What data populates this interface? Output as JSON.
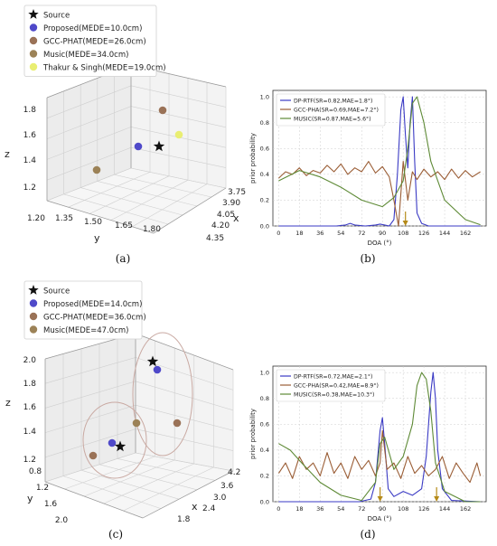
{
  "panels": [
    {
      "caption": "(a)",
      "legend": [
        {
          "label": "Source",
          "marker": "star",
          "color": "#111111"
        },
        {
          "label": "Proposed(MEDE=10.0cm)",
          "marker": "circle",
          "color": "#4f49c9"
        },
        {
          "label": "GCC-PHAT(MEDE=26.0cm)",
          "marker": "circle",
          "color": "#9a7257"
        },
        {
          "label": "Music(MEDE=34.0cm)",
          "marker": "circle",
          "color": "#9c8257"
        },
        {
          "label": "Thakur & Singh(MEDE=19.0cm)",
          "marker": "circle",
          "color": "#e9ee72"
        }
      ],
      "axes": {
        "z_label": "z",
        "y_label": "y",
        "x_label": "x",
        "z_ticks": [
          "1.8",
          "1.6",
          "1.4",
          "1.2"
        ],
        "y_ticks": [
          "1.20",
          "1.35",
          "1.50",
          "1.65",
          "1.80"
        ],
        "x_ticks": [
          "3.75",
          "3.90",
          "4.05",
          "4.20",
          "4.35"
        ]
      }
    },
    {
      "caption": "(b)",
      "xlabel": "DOA (°)",
      "ylabel": "prior probability",
      "x_ticks": [
        "0",
        "18",
        "36",
        "54",
        "72",
        "90",
        "108",
        "126",
        "144",
        "162"
      ],
      "y_ticks": [
        "0.0",
        "0.2",
        "0.4",
        "0.6",
        "0.8",
        "1.0"
      ],
      "legend": [
        {
          "label": "DP-RTF(SR=0.82,MAE=1.8°)",
          "color": "#3a3ac4"
        },
        {
          "label": "GCC-PHA(SR=0.69,MAE=7.2°)",
          "color": "#9a5d35"
        },
        {
          "label": "MUSIC(SR=0.87,MAE=5.6°)",
          "color": "#5e8a36"
        }
      ]
    },
    {
      "caption": "(c)",
      "legend": [
        {
          "label": "Source",
          "marker": "star",
          "color": "#111111"
        },
        {
          "label": "Proposed(MEDE=14.0cm)",
          "marker": "circle",
          "color": "#4f49c9"
        },
        {
          "label": "GCC-PHAT(MEDE=36.0cm)",
          "marker": "circle",
          "color": "#9a7257"
        },
        {
          "label": "Music(MEDE=47.0cm)",
          "marker": "circle",
          "color": "#9c8257"
        }
      ],
      "axes": {
        "z_label": "z",
        "y_label": "y",
        "x_label": "x",
        "z_ticks": [
          "2.0",
          "1.8",
          "1.6",
          "1.4",
          "1.2"
        ],
        "y_ticks": [
          "0.8",
          "1.2",
          "1.6",
          "2.0"
        ],
        "x_ticks": [
          "4.2",
          "3.6",
          "3.0",
          "2.4",
          "1.8"
        ]
      }
    },
    {
      "caption": "(d)",
      "xlabel": "DOA (°)",
      "ylabel": "prior probability",
      "x_ticks": [
        "0",
        "18",
        "36",
        "54",
        "72",
        "90",
        "108",
        "126",
        "144",
        "162"
      ],
      "y_ticks": [
        "0.0",
        "0.2",
        "0.4",
        "0.6",
        "0.8",
        "1.0"
      ],
      "legend": [
        {
          "label": "DP-RTF(SR=0.72,MAE=2.1°)",
          "color": "#3a3ac4"
        },
        {
          "label": "GCC-PHA(SR=0.42,MAE=8.9°)",
          "color": "#9a5d35"
        },
        {
          "label": "MUSIC(SR=0.38,MAE=10.3°)",
          "color": "#5e8a36"
        }
      ]
    }
  ],
  "chart_data": [
    {
      "type": "scatter",
      "title": "",
      "dimensions": 3,
      "axes": {
        "x": "x",
        "y": "y",
        "z": "z"
      },
      "series": [
        {
          "name": "Source",
          "x": 4.05,
          "y": 1.65,
          "z": 1.55
        },
        {
          "name": "Proposed(MEDE=10.0cm)",
          "x": 4.1,
          "y": 1.57,
          "z": 1.55
        },
        {
          "name": "GCC-PHAT(MEDE=26.0cm)",
          "x": 3.9,
          "y": 1.42,
          "z": 1.8
        },
        {
          "name": "Music(MEDE=34.0cm)",
          "x": 4.35,
          "y": 1.2,
          "z": 1.35
        },
        {
          "name": "Thakur & Singh(MEDE=19.0cm)",
          "x": 3.95,
          "y": 1.75,
          "z": 1.62
        }
      ]
    },
    {
      "type": "line",
      "title": "",
      "xlabel": "DOA (°)",
      "ylabel": "prior probability",
      "xlim": [
        -5,
        180
      ],
      "ylim": [
        0,
        1.05
      ],
      "series": [
        {
          "name": "DP-RTF(SR=0.82,MAE=1.8°)",
          "x": [
            0,
            50,
            58,
            62,
            66,
            75,
            84,
            88,
            92,
            96,
            100,
            103,
            106,
            108,
            110,
            112,
            114,
            116,
            118,
            120,
            124,
            130,
            150,
            175
          ],
          "y": [
            0,
            0,
            0.008,
            0.02,
            0.008,
            0,
            0.008,
            0.015,
            0.008,
            0,
            0.05,
            0.4,
            0.9,
            1.0,
            0.7,
            0.45,
            0.8,
            1.0,
            0.5,
            0.1,
            0.02,
            0,
            0,
            0
          ]
        },
        {
          "name": "GCC-PHA(SR=0.69,MAE=7.2°)",
          "x": [
            0,
            6,
            12,
            18,
            24,
            30,
            36,
            42,
            48,
            54,
            60,
            66,
            72,
            78,
            84,
            90,
            96,
            100,
            104,
            108,
            112,
            116,
            120,
            126,
            132,
            138,
            144,
            150,
            156,
            162,
            168,
            175
          ],
          "y": [
            0.37,
            0.42,
            0.4,
            0.45,
            0.39,
            0.43,
            0.41,
            0.47,
            0.42,
            0.48,
            0.4,
            0.45,
            0.42,
            0.5,
            0.41,
            0.46,
            0.38,
            0.2,
            0.0,
            0.5,
            0.2,
            0.42,
            0.36,
            0.44,
            0.38,
            0.42,
            0.36,
            0.44,
            0.37,
            0.43,
            0.38,
            0.42
          ]
        },
        {
          "name": "MUSIC(SR=0.87,MAE=5.6°)",
          "x": [
            0,
            18,
            36,
            54,
            72,
            90,
            100,
            108,
            112,
            116,
            120,
            126,
            132,
            144,
            162,
            175
          ],
          "y": [
            0.35,
            0.43,
            0.38,
            0.3,
            0.2,
            0.15,
            0.22,
            0.35,
            0.6,
            0.95,
            1.0,
            0.8,
            0.5,
            0.2,
            0.05,
            0.01
          ]
        }
      ],
      "annotations": [
        "arrow at x≈110"
      ]
    },
    {
      "type": "scatter",
      "title": "",
      "dimensions": 3,
      "axes": {
        "x": "x",
        "y": "y",
        "z": "z"
      },
      "series": [
        {
          "name": "Source",
          "points": [
            {
              "x": 2.4,
              "y": 1.6,
              "z": 1.9
            },
            {
              "x": 3.4,
              "y": 1.4,
              "z": 1.3
            }
          ]
        },
        {
          "name": "Proposed(MEDE=14.0cm)",
          "points": [
            {
              "x": 2.3,
              "y": 1.6,
              "z": 1.85
            },
            {
              "x": 3.5,
              "y": 1.3,
              "z": 1.3
            }
          ]
        },
        {
          "name": "GCC-PHAT(MEDE=36.0cm)",
          "points": [
            {
              "x": 2.0,
              "y": 1.7,
              "z": 1.45
            },
            {
              "x": 3.9,
              "y": 1.0,
              "z": 1.2
            }
          ]
        },
        {
          "name": "Music(MEDE=47.0cm)",
          "points": [
            {
              "x": 2.8,
              "y": 1.6,
              "z": 1.45
            }
          ]
        }
      ]
    },
    {
      "type": "line",
      "title": "",
      "xlabel": "DOA (°)",
      "ylabel": "prior probability",
      "xlim": [
        -5,
        180
      ],
      "ylim": [
        0,
        1.05
      ],
      "series": [
        {
          "name": "DP-RTF(SR=0.72,MAE=2.1°)",
          "x": [
            0,
            70,
            80,
            84,
            88,
            90,
            92,
            95,
            100,
            108,
            116,
            124,
            128,
            132,
            134,
            136,
            138,
            142,
            150,
            175
          ],
          "y": [
            0,
            0,
            0.02,
            0.15,
            0.55,
            0.65,
            0.45,
            0.1,
            0.04,
            0.08,
            0.05,
            0.1,
            0.35,
            0.85,
            1.0,
            0.8,
            0.4,
            0.1,
            0.01,
            0
          ]
        },
        {
          "name": "GCC-PHA(SR=0.42,MAE=8.9°)",
          "x": [
            0,
            6,
            12,
            18,
            24,
            30,
            36,
            42,
            48,
            54,
            60,
            66,
            72,
            78,
            84,
            88,
            90,
            94,
            100,
            106,
            112,
            118,
            124,
            130,
            136,
            142,
            148,
            154,
            160,
            166,
            172,
            175
          ],
          "y": [
            0.22,
            0.3,
            0.18,
            0.35,
            0.25,
            0.3,
            0.2,
            0.38,
            0.22,
            0.3,
            0.18,
            0.35,
            0.25,
            0.32,
            0.2,
            0.3,
            0.55,
            0.25,
            0.3,
            0.18,
            0.35,
            0.22,
            0.28,
            0.2,
            0.25,
            0.35,
            0.18,
            0.3,
            0.22,
            0.15,
            0.3,
            0.2
          ]
        },
        {
          "name": "MUSIC(SR=0.38,MAE=10.3°)",
          "x": [
            0,
            10,
            20,
            36,
            54,
            72,
            84,
            88,
            92,
            100,
            108,
            116,
            120,
            124,
            128,
            132,
            136,
            144,
            162,
            175
          ],
          "y": [
            0.45,
            0.4,
            0.3,
            0.15,
            0.05,
            0.01,
            0.15,
            0.45,
            0.5,
            0.25,
            0.35,
            0.6,
            0.9,
            1.0,
            0.95,
            0.7,
            0.3,
            0.08,
            0.0,
            0.0
          ]
        }
      ],
      "annotations": [
        "arrow at x≈88",
        "arrow at x≈137"
      ]
    }
  ]
}
